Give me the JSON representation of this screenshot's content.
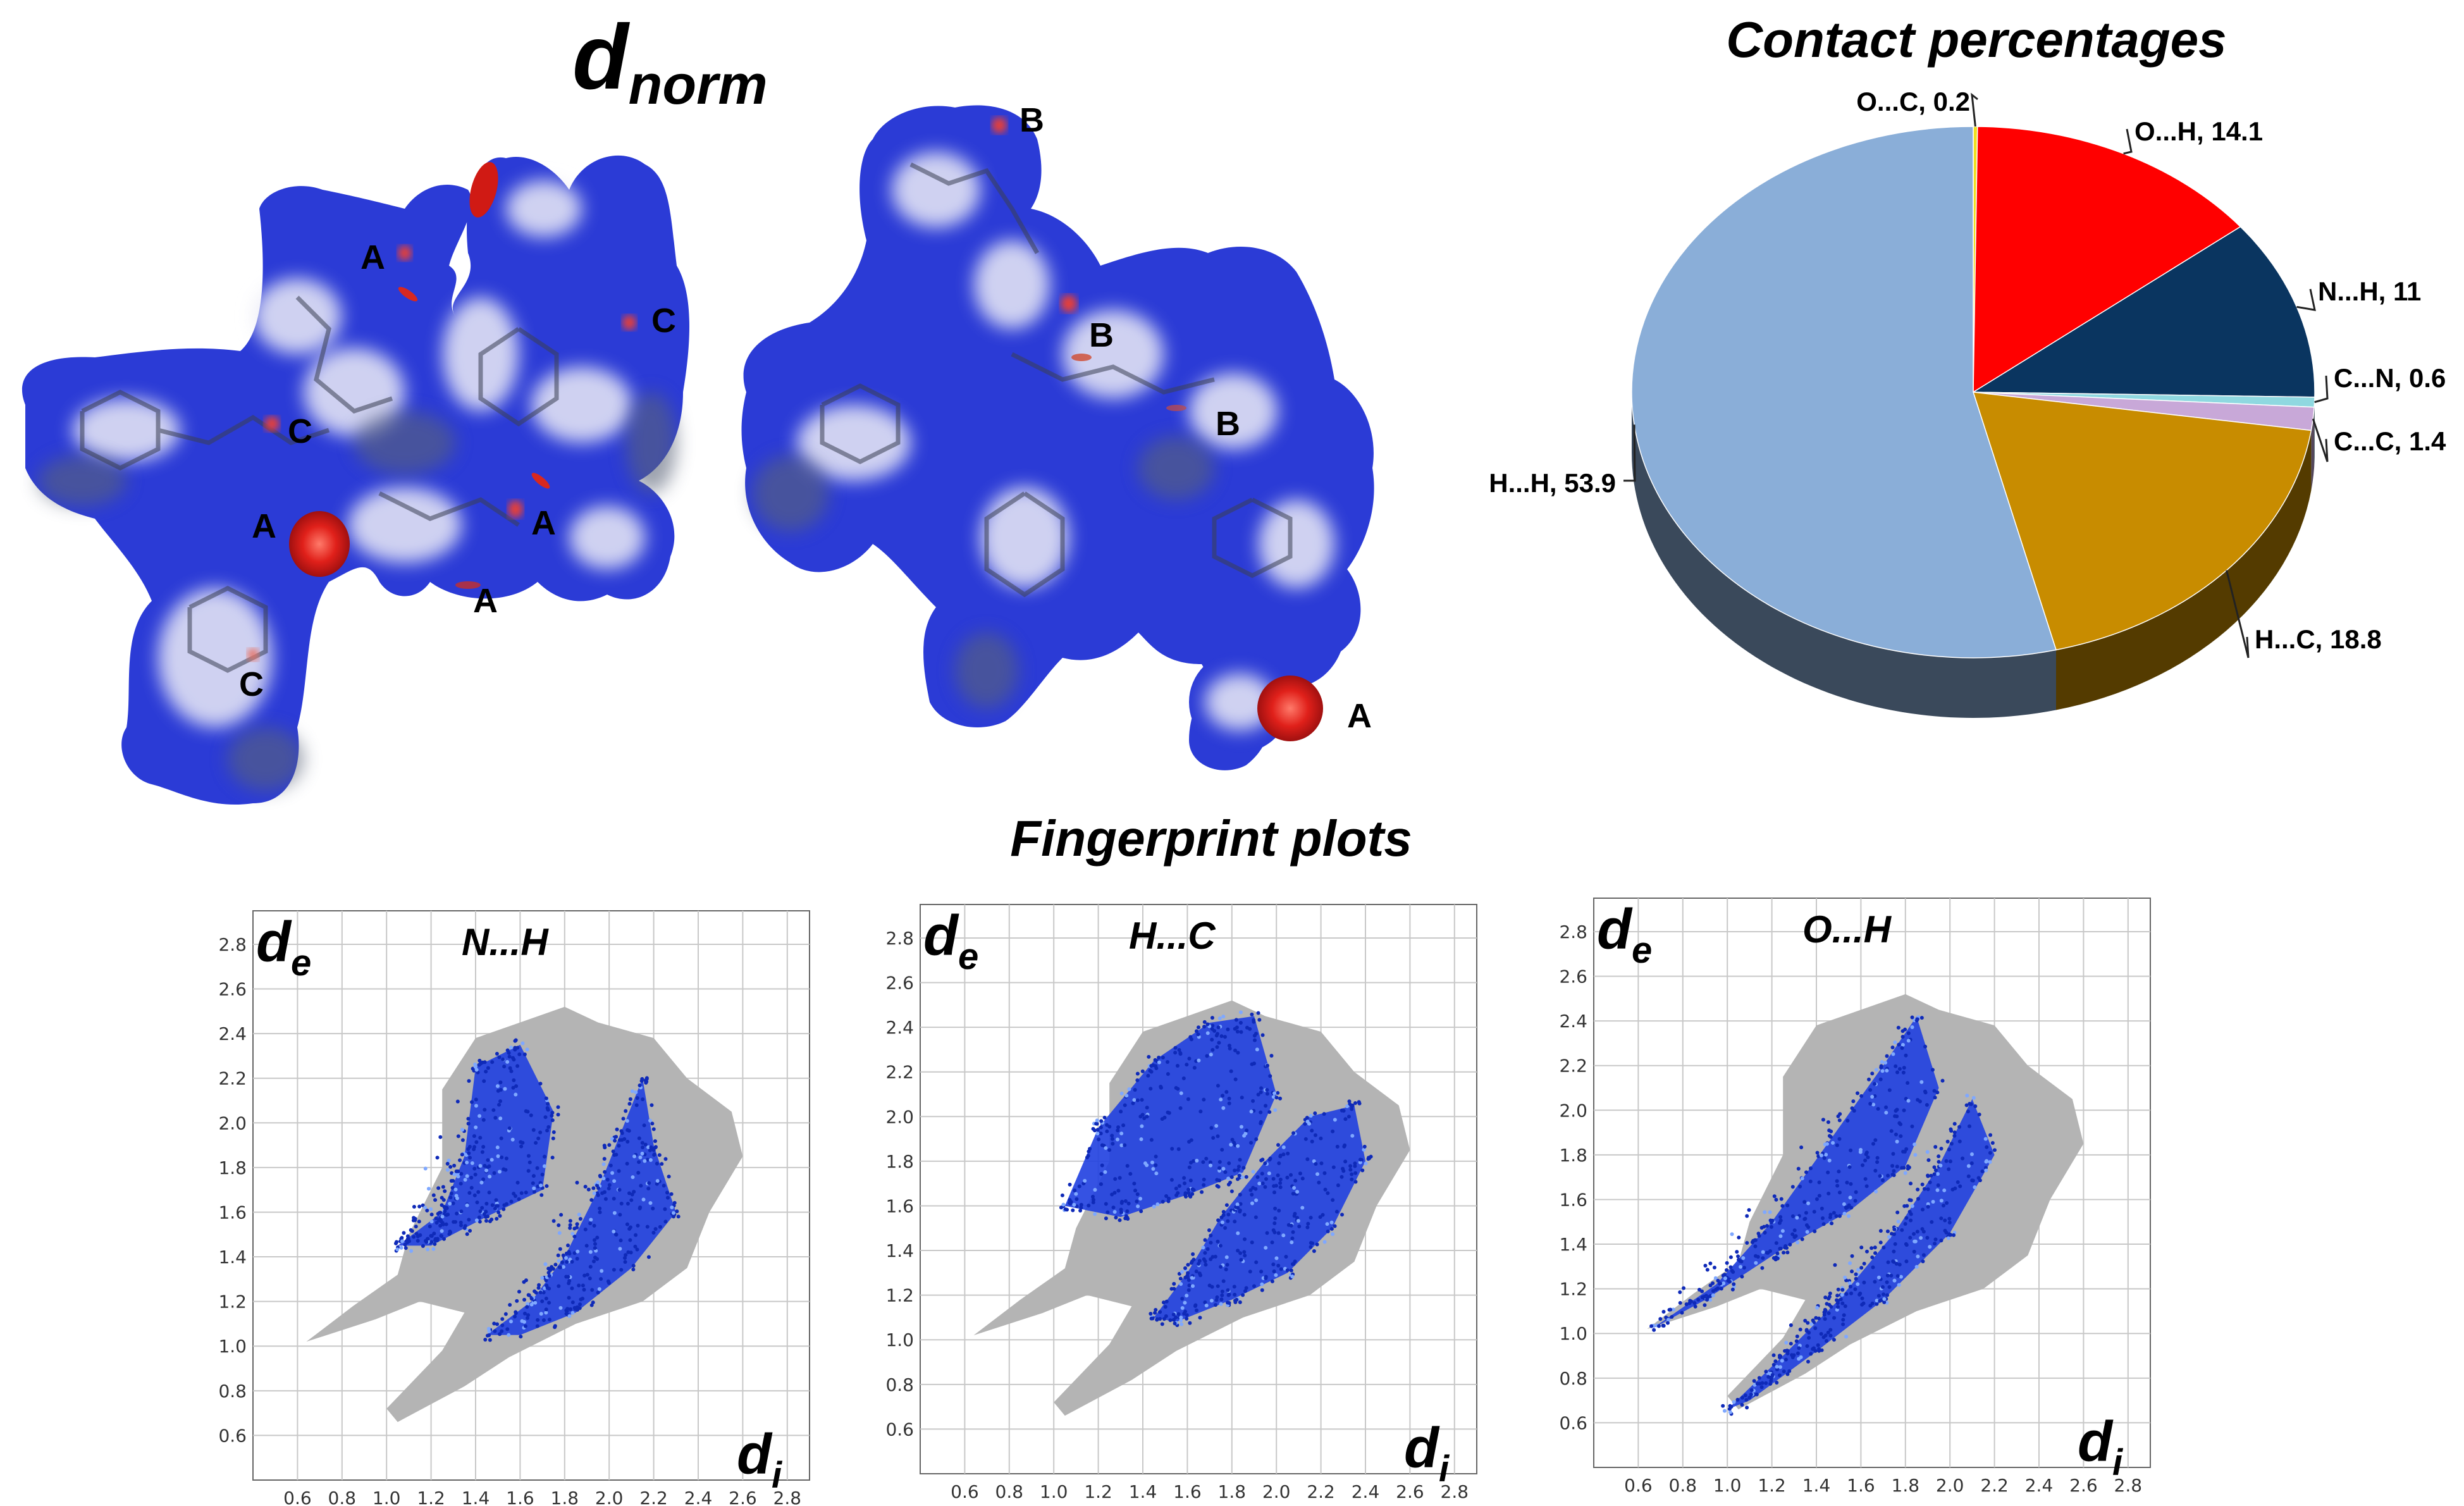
{
  "dnorm": {
    "title_main": "d",
    "title_sub": "norm",
    "left_labels": [
      "A",
      "C",
      "C",
      "A",
      "A",
      "A",
      "C"
    ],
    "right_labels": [
      "B",
      "B",
      "B",
      "A"
    ]
  },
  "colors": {
    "surface_blue": "#2b3bd6",
    "surface_white": "#ececf6",
    "contact_red": "#e0201a",
    "fp_gray": "#b4b4b4",
    "fp_blue": "#1f3fe0"
  },
  "chart_data": [
    {
      "type": "pie",
      "title": "Contact percentages",
      "style": "3d",
      "slices": [
        {
          "label": "O...C, 0.2",
          "name": "O...C",
          "value": 0.2,
          "color": "#f0e020"
        },
        {
          "label": "O...H, 14.1",
          "name": "O...H",
          "value": 14.1,
          "color": "#ff0000"
        },
        {
          "label": "N...H, 11",
          "name": "N...H",
          "value": 11,
          "color": "#0a3560"
        },
        {
          "label": "C...N, 0.6",
          "name": "C...N",
          "value": 0.6,
          "color": "#8fd8e0"
        },
        {
          "label": "C...C, 1.4",
          "name": "C...C",
          "value": 1.4,
          "color": "#c8a8d8"
        },
        {
          "label": "H...C, 18.8",
          "name": "H...C",
          "value": 18.8,
          "color": "#c88c00"
        },
        {
          "label": "H...H, 53.9",
          "name": "H...H",
          "value": 53.9,
          "color": "#8aaed8"
        }
      ]
    },
    {
      "type": "scatter",
      "section_title": "Fingerprint plots",
      "plots": [
        {
          "title": "N...H",
          "xlabel_main": "d",
          "xlabel_sub": "i",
          "ylabel_main": "d",
          "ylabel_sub": "e",
          "xticks": [
            "0.6",
            "0.8",
            "1.0",
            "1.2",
            "1.4",
            "1.6",
            "1.8",
            "2.0",
            "2.2",
            "2.4",
            "2.6",
            "2.8"
          ],
          "yticks": [
            "0.6",
            "0.8",
            "1.0",
            "1.2",
            "1.4",
            "1.6",
            "1.8",
            "2.0",
            "2.2",
            "2.4",
            "2.6",
            "2.8"
          ],
          "xlim": [
            0.4,
            2.9
          ],
          "ylim": [
            0.4,
            2.95
          ],
          "grid": true
        },
        {
          "title": "H...C",
          "xlabel_main": "d",
          "xlabel_sub": "i",
          "ylabel_main": "d",
          "ylabel_sub": "e",
          "xticks": [
            "0.6",
            "0.8",
            "1.0",
            "1.2",
            "1.4",
            "1.6",
            "1.8",
            "2.0",
            "2.2",
            "2.4",
            "2.6",
            "2.8"
          ],
          "yticks": [
            "0.6",
            "0.8",
            "1.0",
            "1.2",
            "1.4",
            "1.6",
            "1.8",
            "2.0",
            "2.2",
            "2.4",
            "2.6",
            "2.8"
          ],
          "xlim": [
            0.4,
            2.9
          ],
          "ylim": [
            0.4,
            2.95
          ],
          "grid": true
        },
        {
          "title": "O...H",
          "xlabel_main": "d",
          "xlabel_sub": "i",
          "ylabel_main": "d",
          "ylabel_sub": "e",
          "xticks": [
            "0.6",
            "0.8",
            "1.0",
            "1.2",
            "1.4",
            "1.6",
            "1.8",
            "2.0",
            "2.2",
            "2.4",
            "2.6",
            "2.8"
          ],
          "yticks": [
            "0.6",
            "0.8",
            "1.0",
            "1.2",
            "1.4",
            "1.6",
            "1.8",
            "2.0",
            "2.2",
            "2.4",
            "2.6",
            "2.8"
          ],
          "xlim": [
            0.4,
            2.9
          ],
          "ylim": [
            0.4,
            2.95
          ],
          "grid": true
        }
      ]
    }
  ]
}
